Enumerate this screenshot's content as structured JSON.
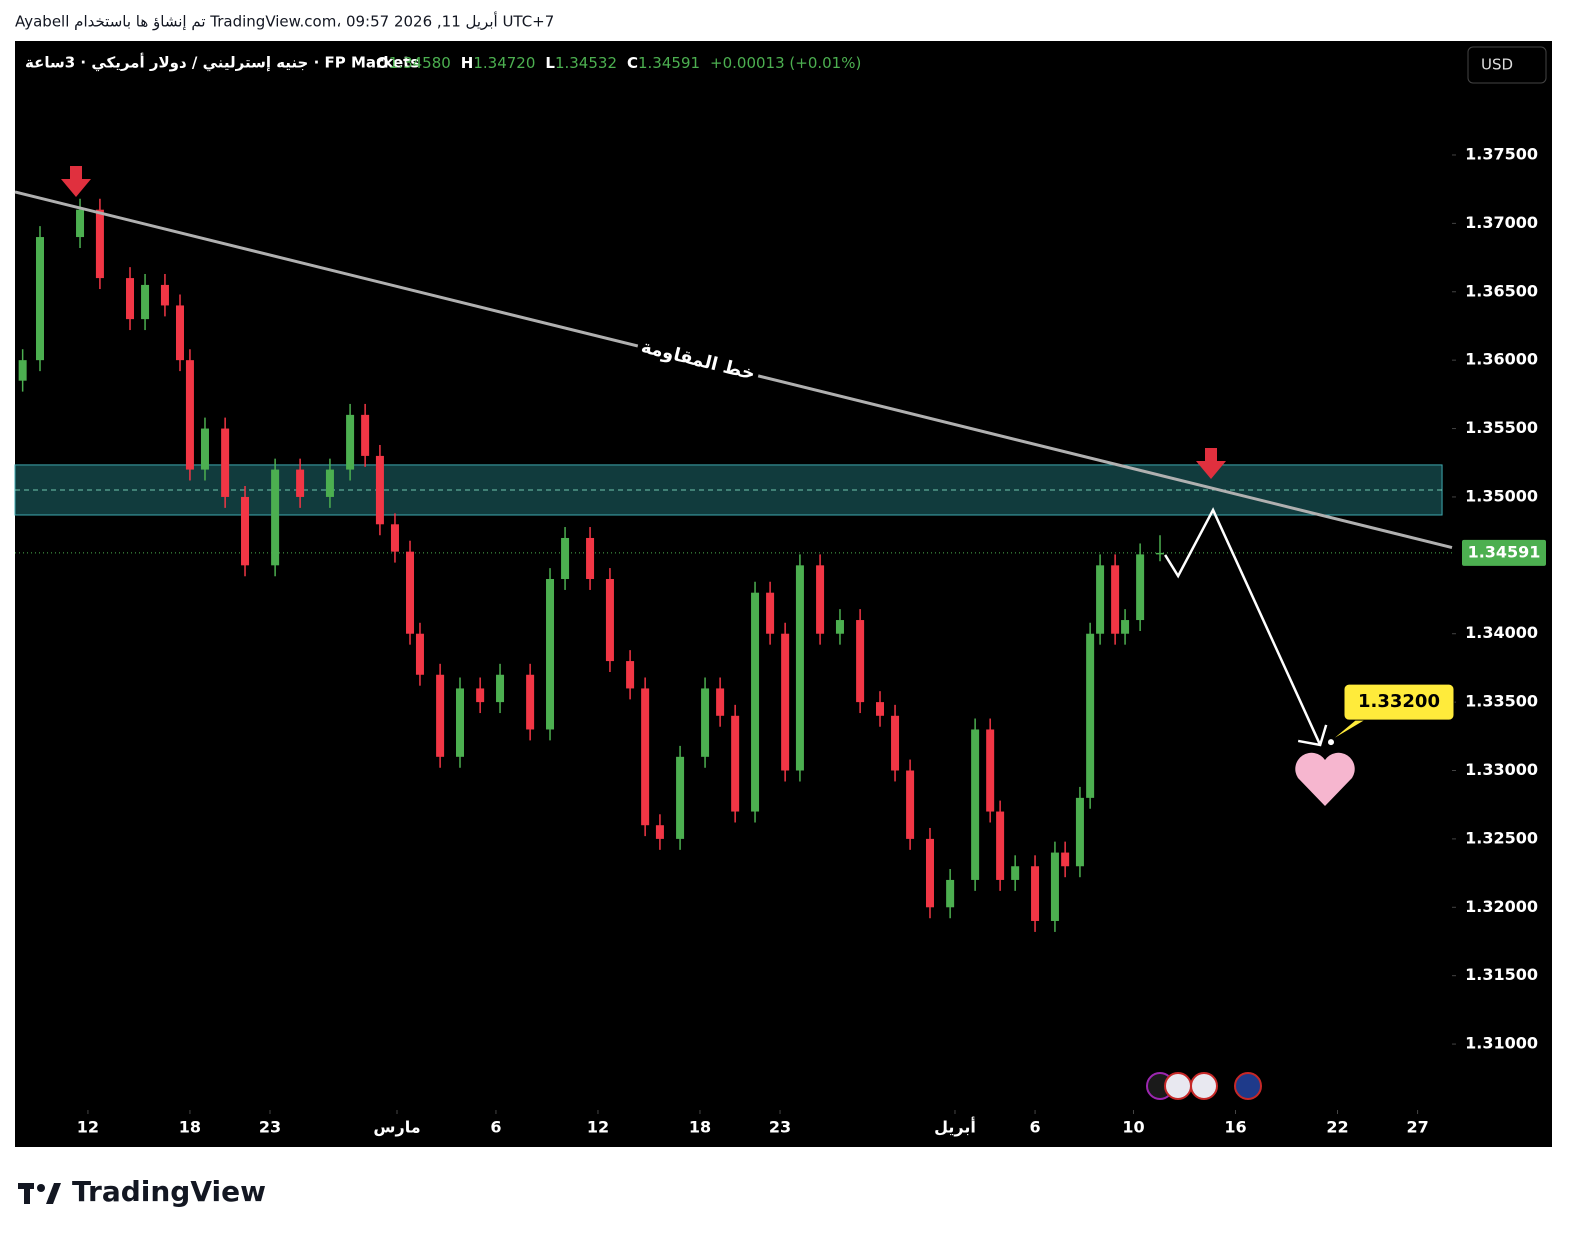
{
  "header": {
    "text": "Ayabell تم إنشاؤ ها باستخدام TradingView.com، 09:57 2026 ,11 أبريل UTC+7"
  },
  "logo": "TradingView",
  "chart_data": {
    "type": "candlestick",
    "symbol": "جنيه إسترليني / دولار أمريكي · 3ساعة · FP Markets",
    "ohlc_legend": {
      "o_key": "O",
      "open": "1.34580",
      "h_key": "H",
      "high": "1.34720",
      "l_key": "L",
      "low": "1.34532",
      "c_key": "C",
      "close": "1.34591",
      "change": "+0.00013 (+0.01%)"
    },
    "currency": "USD",
    "up_color": "#4caf50",
    "down_color": "#f23645",
    "x": [
      0.3,
      0.98,
      2.55,
      3.33,
      4.51,
      5.1,
      5.88,
      6.47,
      6.86,
      7.45,
      8.24,
      9.02,
      10.2,
      11.18,
      12.35,
      13.14,
      13.73,
      14.31,
      14.9,
      15.49,
      15.88,
      16.67,
      17.45,
      18.24,
      19.02,
      20.2,
      20.98,
      21.57,
      22.55,
      23.33,
      24.12,
      24.71,
      25.29,
      26.08,
      27.06,
      27.65,
      28.24,
      29.02,
      29.61,
      30.2,
      30.78,
      31.57,
      32.35,
      33.14,
      33.92,
      34.51,
      35.1,
      35.88,
      36.67,
      37.65,
      38.24,
      38.63,
      39.22,
      40.0,
      40.78,
      41.18,
      41.76,
      42.16,
      42.55,
      43.14,
      43.53,
      44.12,
      44.9
    ],
    "open": [
      1.3585,
      1.36,
      1.369,
      1.371,
      1.366,
      1.363,
      1.3655,
      1.364,
      1.36,
      1.352,
      1.355,
      1.35,
      1.345,
      1.352,
      1.35,
      1.352,
      1.356,
      1.353,
      1.348,
      1.346,
      1.34,
      1.337,
      1.331,
      1.336,
      1.335,
      1.337,
      1.333,
      1.344,
      1.347,
      1.344,
      1.338,
      1.336,
      1.326,
      1.325,
      1.331,
      1.336,
      1.334,
      1.327,
      1.343,
      1.34,
      1.33,
      1.345,
      1.34,
      1.341,
      1.335,
      1.334,
      1.33,
      1.325,
      1.32,
      1.322,
      1.333,
      1.327,
      1.322,
      1.323,
      1.319,
      1.324,
      1.323,
      1.328,
      1.34,
      1.345,
      1.34,
      1.341,
      1.3458
    ],
    "high": [
      1.3608,
      1.3698,
      1.3718,
      1.3718,
      1.3668,
      1.3663,
      1.3663,
      1.3648,
      1.3608,
      1.3558,
      1.3558,
      1.3508,
      1.3528,
      1.3528,
      1.3528,
      1.3568,
      1.3568,
      1.3538,
      1.3488,
      1.3468,
      1.3408,
      1.3378,
      1.3368,
      1.3368,
      1.3378,
      1.3378,
      1.3448,
      1.3478,
      1.3478,
      1.3448,
      1.3388,
      1.3368,
      1.3268,
      1.3318,
      1.3368,
      1.3368,
      1.3348,
      1.3438,
      1.3438,
      1.3408,
      1.3458,
      1.3458,
      1.3418,
      1.3418,
      1.3358,
      1.3348,
      1.3308,
      1.3258,
      1.3228,
      1.3338,
      1.3338,
      1.3278,
      1.3238,
      1.3238,
      1.3248,
      1.3248,
      1.3288,
      1.3408,
      1.3458,
      1.3458,
      1.3418,
      1.3466,
      1.3472
    ],
    "low": [
      1.3577,
      1.3592,
      1.3682,
      1.3652,
      1.3622,
      1.3622,
      1.3632,
      1.3592,
      1.3512,
      1.3512,
      1.3492,
      1.3442,
      1.3442,
      1.3492,
      1.3492,
      1.3512,
      1.3522,
      1.3472,
      1.3452,
      1.3392,
      1.3362,
      1.3302,
      1.3302,
      1.3342,
      1.3342,
      1.3322,
      1.3322,
      1.3432,
      1.3432,
      1.3372,
      1.3352,
      1.3252,
      1.3242,
      1.3242,
      1.3302,
      1.3332,
      1.3262,
      1.3262,
      1.3392,
      1.3292,
      1.3292,
      1.3392,
      1.3392,
      1.3342,
      1.3332,
      1.3292,
      1.3242,
      1.3192,
      1.3192,
      1.3212,
      1.3262,
      1.3212,
      1.3212,
      1.3182,
      1.3182,
      1.3222,
      1.3222,
      1.3272,
      1.3392,
      1.3392,
      1.3392,
      1.3402,
      1.3453
    ],
    "close": [
      1.36,
      1.369,
      1.371,
      1.366,
      1.363,
      1.3655,
      1.364,
      1.36,
      1.352,
      1.355,
      1.35,
      1.345,
      1.352,
      1.35,
      1.352,
      1.356,
      1.353,
      1.348,
      1.346,
      1.34,
      1.337,
      1.331,
      1.336,
      1.335,
      1.337,
      1.333,
      1.344,
      1.347,
      1.344,
      1.338,
      1.336,
      1.326,
      1.325,
      1.331,
      1.336,
      1.334,
      1.327,
      1.343,
      1.34,
      1.33,
      1.345,
      1.34,
      1.341,
      1.335,
      1.334,
      1.33,
      1.325,
      1.32,
      1.322,
      1.333,
      1.327,
      1.322,
      1.323,
      1.319,
      1.324,
      1.323,
      1.328,
      1.34,
      1.345,
      1.34,
      1.341,
      1.3458,
      1.34591
    ],
    "xlim": [
      0,
      56.35
    ],
    "ylim": [
      1.30518,
      1.38326
    ],
    "xticks": [
      {
        "value": 2.86,
        "label": "12"
      },
      {
        "value": 6.86,
        "label": "18"
      },
      {
        "value": 10.0,
        "label": "23"
      },
      {
        "value": 14.98,
        "label": "مارس"
      },
      {
        "value": 18.86,
        "label": "6"
      },
      {
        "value": 22.86,
        "label": "12"
      },
      {
        "value": 26.86,
        "label": "18"
      },
      {
        "value": 30.0,
        "label": "23"
      },
      {
        "value": 36.86,
        "label": "أبريل"
      },
      {
        "value": 40.0,
        "label": "6"
      },
      {
        "value": 43.86,
        "label": "10"
      },
      {
        "value": 47.86,
        "label": "16"
      },
      {
        "value": 51.86,
        "label": "22"
      },
      {
        "value": 55.0,
        "label": "27"
      }
    ],
    "yticks": [
      {
        "value": 1.31,
        "label": "1.31000"
      },
      {
        "value": 1.315,
        "label": "1.31500"
      },
      {
        "value": 1.32,
        "label": "1.32000"
      },
      {
        "value": 1.325,
        "label": "1.32500"
      },
      {
        "value": 1.33,
        "label": "1.33000"
      },
      {
        "value": 1.335,
        "label": "1.33500"
      },
      {
        "value": 1.34,
        "label": "1.34000"
      },
      {
        "value": 1.35,
        "label": "1.35000"
      },
      {
        "value": 1.355,
        "label": "1.35500"
      },
      {
        "value": 1.36,
        "label": "1.36000"
      },
      {
        "value": 1.365,
        "label": "1.36500"
      },
      {
        "value": 1.37,
        "label": "1.37000"
      },
      {
        "value": 1.375,
        "label": "1.37500"
      }
    ],
    "last_price": {
      "value": 1.34591,
      "label": "1.34591"
    },
    "resistance": {
      "label": "خط المقاومة",
      "x": [
        0,
        56.35
      ],
      "values": [
        1.3723,
        1.3463
      ]
    },
    "zone": {
      "top": 1.35234,
      "bottom": 1.34868,
      "mid": 1.35051,
      "x": [
        0,
        55.96
      ]
    },
    "projection": {
      "x": [
        45.1,
        45.61,
        46.98,
        51.18
      ],
      "values": [
        1.34576,
        1.34422,
        1.34905,
        1.33187
      ]
    },
    "target": {
      "value": 1.332,
      "label": "1.33200"
    }
  }
}
